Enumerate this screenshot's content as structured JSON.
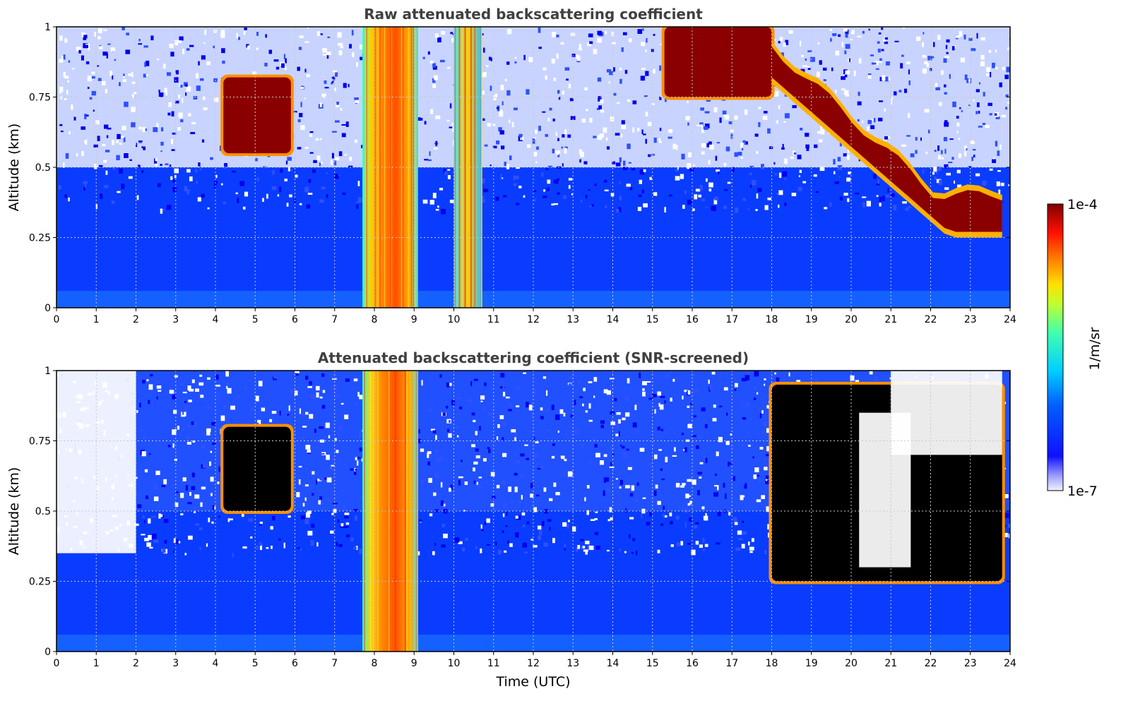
{
  "chart_data": [
    {
      "type": "heatmap",
      "title": "Raw attenuated backscattering coefficient",
      "ylabel": "Altitude (km)",
      "xlabel": "",
      "xlim": [
        0,
        24
      ],
      "ylim": [
        0,
        1
      ],
      "x_ticks": [
        "0",
        "1",
        "2",
        "3",
        "4",
        "5",
        "6",
        "7",
        "8",
        "9",
        "10",
        "11",
        "12",
        "13",
        "14",
        "15",
        "16",
        "17",
        "18",
        "19",
        "20",
        "21",
        "22",
        "23",
        "24"
      ],
      "y_ticks": [
        "0",
        "0.25",
        "0.5",
        "0.75",
        "1"
      ],
      "grid": true,
      "background_level": "low (blue) below ~0.5 km, noisy speckle above",
      "features": [
        {
          "kind": "cloud",
          "t_start": 4.2,
          "t_end": 5.9,
          "alt_bottom": 0.55,
          "alt_top": 0.82,
          "level": "high"
        },
        {
          "kind": "precipitation",
          "t_start": 7.7,
          "t_end": 9.1,
          "alt_bottom": 0,
          "alt_top": 1,
          "level": "medium-high"
        },
        {
          "kind": "precipitation",
          "t_start": 10.0,
          "t_end": 10.7,
          "alt_bottom": 0,
          "alt_top": 1,
          "level": "medium"
        },
        {
          "kind": "cloud",
          "t_start": 15.3,
          "t_end": 18.0,
          "alt_bottom": 0.75,
          "alt_top": 1,
          "level": "high"
        },
        {
          "kind": "cloud",
          "t_start": 18.0,
          "t_end": 23.8,
          "alt_bottom": 0.25,
          "alt_top": 0.95,
          "level": "high",
          "note": "descending cloud base"
        }
      ]
    },
    {
      "type": "heatmap",
      "title": "Attenuated backscattering coefficient (SNR-screened)",
      "ylabel": "Altitude (km)",
      "xlabel": "Time (UTC)",
      "xlim": [
        0,
        24
      ],
      "ylim": [
        0,
        1
      ],
      "x_ticks": [
        "0",
        "1",
        "2",
        "3",
        "4",
        "5",
        "6",
        "7",
        "8",
        "9",
        "10",
        "11",
        "12",
        "13",
        "14",
        "15",
        "16",
        "17",
        "18",
        "19",
        "20",
        "21",
        "22",
        "23",
        "24"
      ],
      "y_ticks": [
        "0",
        "0.25",
        "0.5",
        "0.75",
        "1"
      ],
      "grid": true,
      "screened_regions": [
        {
          "t_start": 0,
          "t_end": 2.0,
          "alt_bottom": 0.35,
          "alt_top": 1
        },
        {
          "t_start": 20.2,
          "t_end": 21.5,
          "alt_bottom": 0.3,
          "alt_top": 0.85
        },
        {
          "t_start": 21.0,
          "t_end": 23.8,
          "alt_bottom": 0.7,
          "alt_top": 1
        }
      ],
      "features": [
        {
          "kind": "cloud",
          "t_start": 4.2,
          "t_end": 5.9,
          "alt_bottom": 0.5,
          "alt_top": 0.8,
          "level": "saturated"
        },
        {
          "kind": "precipitation",
          "t_start": 7.7,
          "t_end": 9.1,
          "alt_bottom": 0,
          "alt_top": 1,
          "level": "medium-high"
        },
        {
          "kind": "cloud",
          "t_start": 18.0,
          "t_end": 23.8,
          "alt_bottom": 0.25,
          "alt_top": 0.95,
          "level": "saturated"
        }
      ]
    }
  ],
  "colorbar": {
    "label": "1/m/sr",
    "max_label": "1e-4",
    "min_label": "1e-7",
    "colormap": "jet"
  }
}
